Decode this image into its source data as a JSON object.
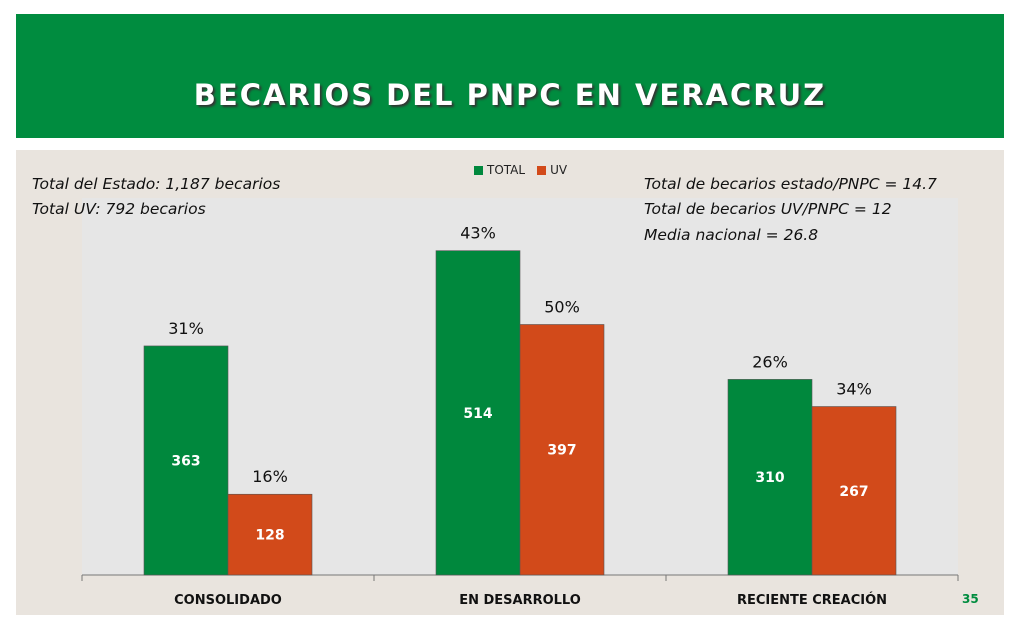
{
  "header": {
    "title": "BECARIOS DEL PNPC EN VERACRUZ"
  },
  "notes": {
    "left": [
      "Total del Estado: 1,187 becarios",
      "Total UV: 792 becarios"
    ],
    "right": [
      "Total de becarios estado/PNPC = 14.7",
      "Total de becarios UV/PNPC = 12",
      "Media nacional = 26.8"
    ]
  },
  "slide_number": "35",
  "colors": {
    "total": "#00883d",
    "uv": "#d24a1a",
    "header": "#008c3f"
  },
  "chart_data": {
    "type": "bar",
    "categories": [
      "CONSOLIDADO",
      "EN DESARROLLO",
      "RECIENTE CREACIÓN"
    ],
    "series": [
      {
        "name": "TOTAL",
        "values": [
          363,
          514,
          310
        ],
        "percent_labels": [
          "31%",
          "43%",
          "26%"
        ]
      },
      {
        "name": "UV",
        "values": [
          128,
          397,
          267
        ],
        "percent_labels": [
          "16%",
          "50%",
          "34%"
        ]
      }
    ],
    "ylim": [
      0,
      600
    ],
    "grid": false,
    "legend_position": "top-center"
  }
}
